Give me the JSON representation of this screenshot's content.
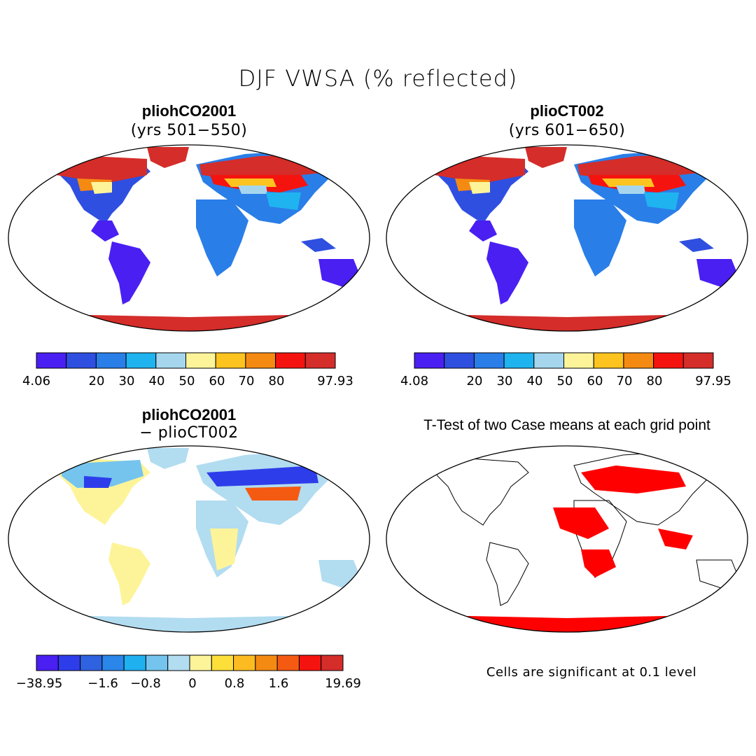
{
  "title": "DJF VWSA (% reflected)",
  "palette10": [
    "#4a1ff2",
    "#2f4fe0",
    "#2a7ee8",
    "#1fb4f0",
    "#a6d6ee",
    "#fdf49a",
    "#fdc420",
    "#f58a12",
    "#f5130f",
    "#d42d2a"
  ],
  "palette14": [
    "#4a1ff2",
    "#2e3dea",
    "#2f62e0",
    "#2a86e8",
    "#1fb0f0",
    "#74c4ee",
    "#b2dcf0",
    "#fdf49a",
    "#fddf3a",
    "#fdbb22",
    "#f58a12",
    "#f55a12",
    "#f5130f",
    "#d42d2a"
  ],
  "panels": [
    {
      "title": "pliohCO2001",
      "subtitle": "(yrs 501−550)",
      "colorbar": {
        "labels": [
          "4.06",
          "20",
          "30",
          "40",
          "50",
          "60",
          "70",
          "80",
          "97.93"
        ]
      }
    },
    {
      "title": "plioCT002",
      "subtitle": "(yrs 601−650)",
      "colorbar": {
        "labels": [
          "4.08",
          "20",
          "30",
          "40",
          "50",
          "60",
          "70",
          "80",
          "97.95"
        ]
      }
    },
    {
      "title": "pliohCO2001",
      "subtitle": "− plioCT002",
      "colorbar": {
        "labels": [
          "−38.95",
          "−1.6",
          "−0.8",
          "0",
          "0.8",
          "1.6",
          "19.69"
        ]
      }
    },
    {
      "title": "T-Test of two Case means at each grid point",
      "note": "Cells are significant at 0.1 level"
    }
  ]
}
